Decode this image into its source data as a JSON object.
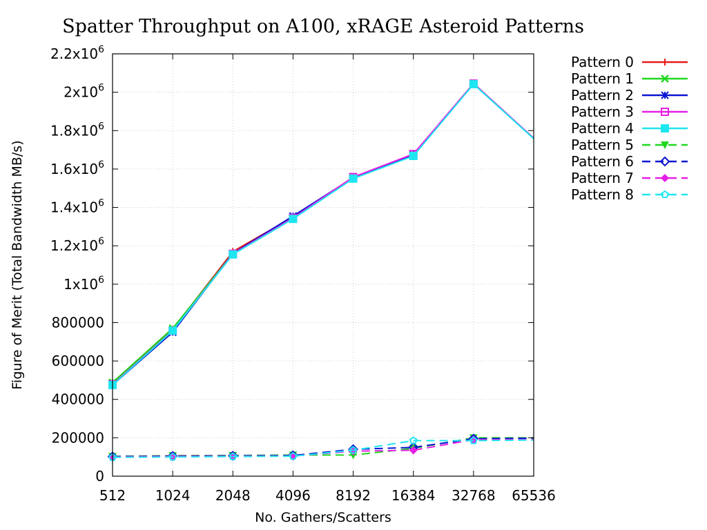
{
  "chart_data": {
    "type": "line",
    "title": "Spatter Throughput on A100, xRAGE Asteroid Patterns",
    "xlabel": "No. Gathers/Scatters",
    "ylabel": "Figure of Merit (Total Bandwidth MB/s)",
    "x_scale": "log2",
    "x": [
      512,
      1024,
      2048,
      4096,
      8192,
      16384,
      32768,
      65536
    ],
    "x_tick_labels": [
      "512",
      "1024",
      "2048",
      "4096",
      "8192",
      "16384",
      "32768",
      "65536"
    ],
    "ylim": [
      0,
      2200000
    ],
    "y_ticks": [
      {
        "value": 0,
        "mantissa": "0",
        "exp": ""
      },
      {
        "value": 200000,
        "mantissa": "200000",
        "exp": ""
      },
      {
        "value": 400000,
        "mantissa": "400000",
        "exp": ""
      },
      {
        "value": 600000,
        "mantissa": "600000",
        "exp": ""
      },
      {
        "value": 800000,
        "mantissa": "800000",
        "exp": ""
      },
      {
        "value": 1000000,
        "mantissa": "1x10",
        "exp": "6"
      },
      {
        "value": 1200000,
        "mantissa": "1.2x10",
        "exp": "6"
      },
      {
        "value": 1400000,
        "mantissa": "1.4x10",
        "exp": "6"
      },
      {
        "value": 1600000,
        "mantissa": "1.6x10",
        "exp": "6"
      },
      {
        "value": 1800000,
        "mantissa": "1.8x10",
        "exp": "6"
      },
      {
        "value": 2000000,
        "mantissa": "2x10",
        "exp": "6"
      },
      {
        "value": 2200000,
        "mantissa": "2.2x10",
        "exp": "6"
      }
    ],
    "grid": true,
    "legend_position": "outside-right",
    "series": [
      {
        "name": "Pattern 0",
        "color": "#e41a1c",
        "dash": "solid",
        "marker": "plus",
        "values": [
          485000,
          765000,
          1170000,
          1350000,
          1555000,
          1675000,
          2045000,
          1760000
        ]
      },
      {
        "name": "Pattern 1",
        "color": "#1ed81e",
        "dash": "solid",
        "marker": "cross",
        "values": [
          488000,
          770000,
          1160000,
          1345000,
          1555000,
          1675000,
          2045000,
          1760000
        ]
      },
      {
        "name": "Pattern 2",
        "color": "#0a14d2",
        "dash": "solid",
        "marker": "star",
        "values": [
          475000,
          750000,
          1160000,
          1355000,
          1555000,
          1675000,
          2045000,
          1760000
        ]
      },
      {
        "name": "Pattern 3",
        "color": "#e61ee6",
        "dash": "solid",
        "marker": "square-open",
        "values": [
          478000,
          758000,
          1158000,
          1345000,
          1558000,
          1678000,
          2045000,
          1760000
        ]
      },
      {
        "name": "Pattern 4",
        "color": "#1ee6f0",
        "dash": "solid",
        "marker": "square-filled",
        "values": [
          475000,
          758000,
          1155000,
          1340000,
          1550000,
          1668000,
          2042000,
          1758000
        ]
      },
      {
        "name": "Pattern 5",
        "color": "#1ed81e",
        "dash": "dashed",
        "marker": "triangle-down-filled",
        "values": [
          103000,
          107000,
          108000,
          110000,
          110000,
          145000,
          200000,
          200000
        ]
      },
      {
        "name": "Pattern 6",
        "color": "#0a14d2",
        "dash": "dashed",
        "marker": "diamond-open",
        "values": [
          102000,
          105000,
          106000,
          108000,
          140000,
          150000,
          195000,
          198000
        ]
      },
      {
        "name": "Pattern 7",
        "color": "#e61ee6",
        "dash": "dashed",
        "marker": "diamond-filled",
        "values": [
          100000,
          103000,
          104000,
          105000,
          130000,
          135000,
          190000,
          190000
        ]
      },
      {
        "name": "Pattern 8",
        "color": "#1ee6f0",
        "dash": "dashed",
        "marker": "pentagon-open",
        "values": [
          98000,
          100000,
          102000,
          104000,
          135000,
          185000,
          185000,
          188000
        ]
      }
    ]
  }
}
